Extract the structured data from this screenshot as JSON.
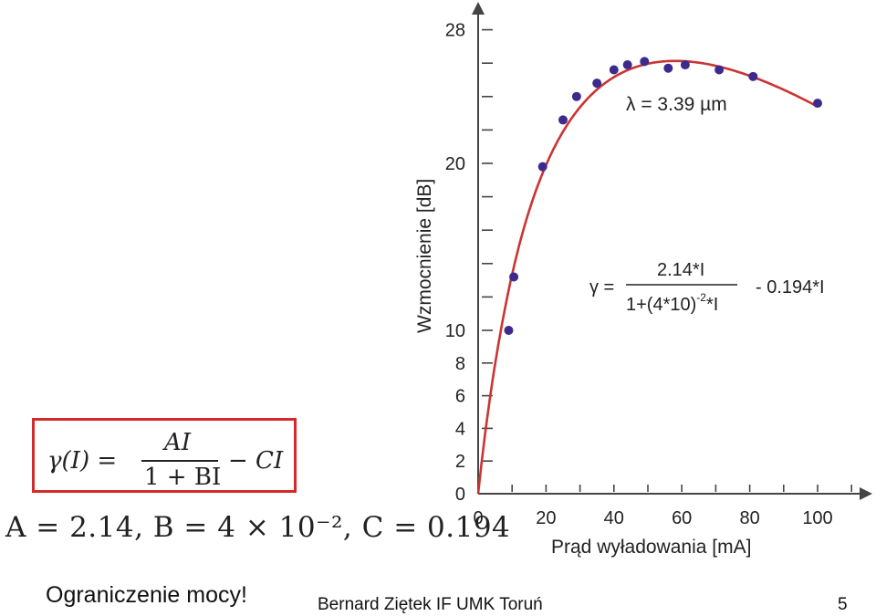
{
  "chart_data": {
    "type": "scatter",
    "xlabel": "Prąd wyładowania [mA]",
    "ylabel": "Wzmocnienie [dB]",
    "xlim": [
      0,
      110
    ],
    "xticks": [
      0,
      20,
      40,
      60,
      80,
      100
    ],
    "xtick_labels": [
      "0",
      "20",
      "40",
      "60",
      "80",
      "100"
    ],
    "ytick_labels": [
      {
        "value": 0,
        "label": "0"
      },
      {
        "value": 2,
        "label": "2"
      },
      {
        "value": 4,
        "label": "4"
      },
      {
        "value": 6,
        "label": "6"
      },
      {
        "value": 8,
        "label": "8"
      },
      {
        "value": 10,
        "label": "10"
      },
      {
        "value": 20,
        "label": "20"
      },
      {
        "value": 28,
        "label": "28"
      }
    ],
    "points": [
      {
        "x": 9,
        "y": 10.0
      },
      {
        "x": 10.5,
        "y": 13.2
      },
      {
        "x": 19,
        "y": 19.8
      },
      {
        "x": 25,
        "y": 22.6
      },
      {
        "x": 29,
        "y": 24.0
      },
      {
        "x": 35,
        "y": 24.8
      },
      {
        "x": 40,
        "y": 25.6
      },
      {
        "x": 44,
        "y": 25.9
      },
      {
        "x": 49,
        "y": 26.1
      },
      {
        "x": 56,
        "y": 25.7
      },
      {
        "x": 61,
        "y": 25.9
      },
      {
        "x": 71,
        "y": 25.6
      },
      {
        "x": 81,
        "y": 25.2
      },
      {
        "x": 100,
        "y": 23.6
      }
    ],
    "fit": {
      "A": 2.14,
      "B": 0.04,
      "C": 0.194
    },
    "annotations": {
      "wavelength": "λ = 3.39 µm",
      "gamma_lhs": "γ =",
      "gamma_num": "2.14*I",
      "gamma_den": "1+(4*10)",
      "gamma_den_sup": "-2",
      "gamma_den_tail": "*I",
      "gamma_tail": "- 0.194*I"
    },
    "colors": {
      "points": "#3d2a8c",
      "fit": "#cc3333",
      "axis": "#444444"
    }
  },
  "formula": {
    "gamma_I": "γ(I) =",
    "numerator": "AI",
    "denominator": "1 + BI",
    "minus_term": "− CI",
    "params": "A = 2.14, B = 4 × 10⁻², C = 0.194"
  },
  "footer": {
    "left": "Ograniczenie mocy!",
    "center": "Bernard Ziętek IF UMK Toruń",
    "page": "5"
  }
}
